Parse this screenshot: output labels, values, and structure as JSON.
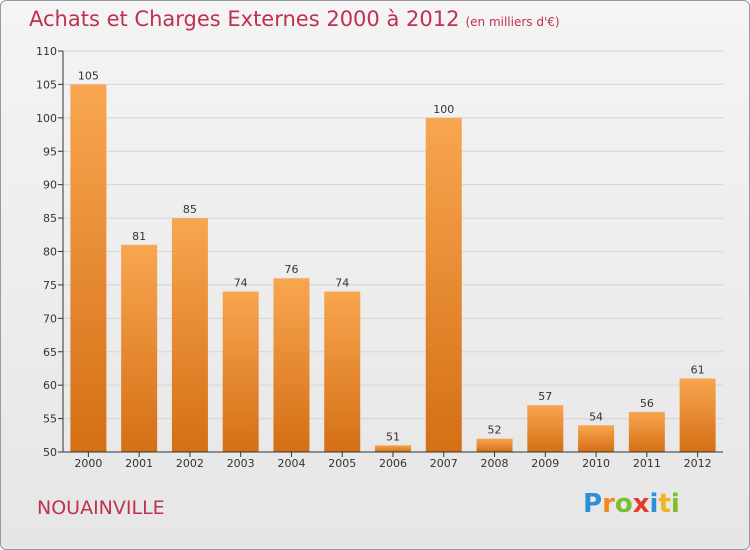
{
  "header": {
    "title": "Achats et Charges Externes 2000 à 2012",
    "subtitle": "(en milliers d'€)"
  },
  "footer": {
    "city": "NOUAINVILLE",
    "brand": "Proxiti"
  },
  "colors": {
    "bar_light": "#f8a650",
    "bar_dark": "#d46f15",
    "title": "#c0314f",
    "grid": "#d4d4d4",
    "axis": "#333333"
  },
  "chart_data": {
    "type": "bar",
    "title": "Achats et Charges Externes 2000 à 2012",
    "categories": [
      "2000",
      "2001",
      "2002",
      "2003",
      "2004",
      "2005",
      "2006",
      "2007",
      "2008",
      "2009",
      "2010",
      "2011",
      "2012"
    ],
    "values": [
      105,
      81,
      85,
      74,
      76,
      74,
      51,
      100,
      52,
      57,
      54,
      56,
      61
    ],
    "ylim": [
      50,
      110
    ],
    "yticks": [
      50,
      55,
      60,
      65,
      70,
      75,
      80,
      85,
      90,
      95,
      100,
      105,
      110
    ],
    "grid": true,
    "xlabel": "",
    "ylabel": ""
  }
}
